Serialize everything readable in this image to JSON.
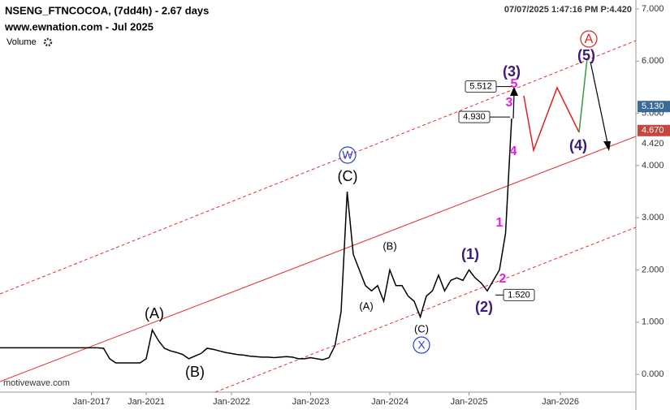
{
  "chart_data": {
    "type": "line",
    "title": "NSENG_FTNCOCOA, (7dd4h) - 2.67 days",
    "subtitle": "www.ewnation.com  - Jul 2025",
    "volume_label": "Volume",
    "timestamp": "07/07/2025 1:47:16 PM  P:4.420",
    "watermark": "motivewave.com",
    "categories": [
      null,
      null,
      null,
      null,
      null,
      null,
      null,
      null,
      null,
      null,
      null,
      null,
      null,
      null,
      null,
      "Jan-2017",
      null,
      null,
      null,
      null,
      null,
      null,
      null,
      null,
      "Jan-2021",
      null,
      null,
      null,
      null,
      null,
      null,
      null,
      null,
      null,
      null,
      null,
      null,
      null,
      "Jan-2022",
      null,
      null,
      null,
      null,
      null,
      null,
      null,
      null,
      null,
      null,
      null,
      null,
      "Jan-2023",
      null,
      null,
      null,
      null,
      null,
      null,
      null,
      null,
      null,
      null,
      null,
      null,
      "Jan-2024",
      null,
      null,
      null,
      null,
      null,
      null,
      null,
      null,
      null,
      null,
      null,
      null,
      "Jan-2025",
      null,
      null,
      null,
      null,
      null,
      null,
      null,
      null,
      null,
      null,
      null,
      null,
      null,
      null,
      "Jan-2026",
      null,
      null,
      null,
      null,
      null,
      null,
      null,
      null,
      null,
      null,
      null
    ],
    "series": [
      {
        "color": "#000000",
        "values": [
          0.51,
          0.51,
          0.51,
          0.51,
          0.51,
          0.51,
          0.51,
          0.51,
          0.51,
          0.51,
          0.51,
          0.51,
          0.51,
          0.51,
          0.51,
          0.51,
          0.51,
          0.5,
          0.3,
          0.22,
          0.22,
          0.22,
          0.22,
          0.22,
          0.3,
          0.85,
          0.65,
          0.5,
          0.45,
          0.42,
          0.38,
          0.3,
          0.35,
          0.4,
          0.5,
          0.48,
          0.45,
          0.42,
          0.4,
          0.38,
          0.37,
          0.35,
          0.34,
          0.33,
          0.33,
          0.32,
          0.33,
          0.34,
          0.33,
          0.3,
          0.3,
          0.32,
          0.3,
          0.28,
          0.32,
          0.55,
          1.2,
          3.5,
          2.3,
          2.0,
          1.7,
          1.6,
          1.7,
          1.4,
          2.0,
          1.7,
          1.7,
          1.5,
          1.4,
          1.1,
          1.5,
          1.6,
          1.9,
          1.6,
          1.8,
          1.85,
          1.8,
          2.0,
          1.85,
          1.75,
          1.6,
          1.8,
          2.0,
          2.7,
          4.9,
          null,
          null,
          null,
          null,
          null,
          null,
          null,
          null,
          null,
          null,
          null,
          null,
          null,
          null,
          null,
          null,
          null,
          null,
          null
        ]
      }
    ],
    "ylim": [
      -0.34,
      7.17
    ],
    "yticks": [
      {
        "value": 0,
        "label": "0.000"
      },
      {
        "value": 1,
        "label": "1.000"
      },
      {
        "value": 2,
        "label": "2.000"
      },
      {
        "value": 3,
        "label": "3.000"
      },
      {
        "value": 4,
        "label": "4.000"
      },
      {
        "value": 5,
        "label": "5.000"
      },
      {
        "value": 6,
        "label": "6.000"
      },
      {
        "value": 7,
        "label": "7.000"
      }
    ],
    "price_labels": [
      {
        "value": 5.512,
        "label": "5.512"
      },
      {
        "value": 4.93,
        "label": "4.930"
      },
      {
        "value": 1.52,
        "label": "1.520"
      }
    ],
    "axis_markers": [
      {
        "value": 5.13,
        "label": "5.130",
        "color": "#3b6a98"
      },
      {
        "value": 4.67,
        "label": "4.670",
        "color": "#c8453f"
      },
      {
        "value": 4.42,
        "label": "4.420",
        "color": "#ffffff"
      }
    ],
    "wave_labels": [
      "(A)",
      "(B)",
      "(C)",
      "(A)",
      "(B)",
      "(C)",
      "W",
      "X",
      "(1)",
      "(2)",
      "(3)",
      "(4)",
      "(5)",
      "1",
      "2",
      "3",
      "4",
      "5",
      "A"
    ]
  }
}
